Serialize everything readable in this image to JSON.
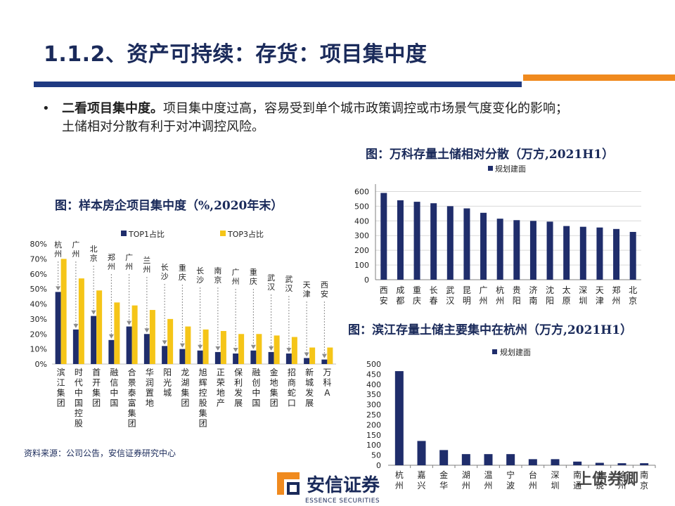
{
  "title": "1.1.2、资产可持续：存货：项目集中度",
  "bullet": {
    "marker": "•",
    "bold": "二看项目集中度。",
    "line1": "项目集中度过高，容易受到单个城市政策调控或市场景气度变化的影响；",
    "line2": "土储相对分散有利于对冲调控风险。"
  },
  "source": "资料来源：公司公告，安信证券研究中心",
  "logo": {
    "cn": "安信证券",
    "en": "ESSENCE SECURITIES"
  },
  "watermark": "上债券卿",
  "colors": {
    "navy": "#1f2d6b",
    "gold": "#f5c518",
    "orange": "#f08a1e",
    "blue": "#1f3a82",
    "grid": "#d9d9d9",
    "marker": "#8c8c8c"
  },
  "chart_data": [
    {
      "type": "bar",
      "title": "图：样本房企项目集中度（%,2020年末）",
      "categories": [
        "滨江集团",
        "时代中国控股",
        "首开集团",
        "融信中国",
        "合景泰富集团",
        "华润置地",
        "阳光城",
        "龙湖集团",
        "旭辉控股集团",
        "正荣地产",
        "保利发展",
        "融创中国",
        "金地集团",
        "招商蛇口",
        "新城发展",
        "万科A"
      ],
      "series": [
        {
          "name": "TOP1占比",
          "values": [
            48,
            23,
            32,
            16,
            25,
            20,
            12,
            10,
            9,
            8,
            7,
            9,
            8,
            7,
            4,
            3
          ]
        },
        {
          "name": "TOP3占比",
          "values": [
            70,
            57,
            49,
            41,
            39,
            36,
            30,
            25,
            23,
            22,
            20,
            20,
            19,
            18,
            11,
            11
          ]
        }
      ],
      "annotations": [
        "杭州",
        "广州",
        "北京",
        "郑州",
        "广州",
        "兰州",
        "长沙",
        "重庆",
        "长沙",
        "南京",
        "广州",
        "重庆",
        "武汉",
        "武汉",
        "天津",
        "西安"
      ],
      "yticks": [
        "80%",
        "70%",
        "60%",
        "50%",
        "40%",
        "30%",
        "20%",
        "10%",
        "0%"
      ],
      "ylim": [
        0,
        80
      ]
    },
    {
      "type": "bar",
      "title": "图：万科存量土储相对分散（万方,2021H1）",
      "legend": "规划建面",
      "categories": [
        "西安",
        "成都",
        "重庆",
        "长春",
        "武汉",
        "昆明",
        "广州",
        "杭州",
        "贵阳",
        "济南",
        "沈阳",
        "太原",
        "深圳",
        "天津",
        "郑州",
        "北京"
      ],
      "values": [
        590,
        540,
        530,
        520,
        500,
        485,
        455,
        415,
        405,
        400,
        395,
        365,
        360,
        355,
        345,
        325
      ],
      "yticks": [
        "600",
        "500",
        "400",
        "300",
        "200",
        "100",
        "0"
      ],
      "ylim": [
        0,
        650
      ]
    },
    {
      "type": "bar",
      "title": "图：滨江存量土储主要集中在杭州（万方,2021H1）",
      "legend": "规划建面",
      "categories": [
        "杭州",
        "嘉兴",
        "金华",
        "湖州",
        "温州",
        "宁波",
        "台州",
        "深圳",
        "南通",
        "上饶",
        "徐州",
        "南京"
      ],
      "values": [
        465,
        120,
        75,
        55,
        55,
        55,
        30,
        30,
        18,
        12,
        10,
        10
      ],
      "yticks": [
        "500",
        "450",
        "400",
        "350",
        "300",
        "250",
        "200",
        "150",
        "100",
        "50",
        "0"
      ],
      "ylim": [
        0,
        500
      ]
    }
  ]
}
